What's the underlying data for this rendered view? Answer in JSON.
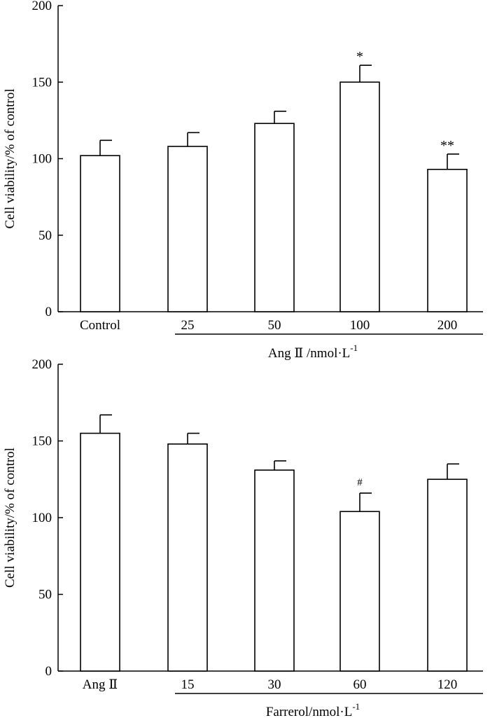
{
  "chart_data": [
    {
      "type": "bar",
      "ylabel": "Cell viability/% of control",
      "ylim": [
        0,
        200
      ],
      "yticks": [
        "0",
        "50",
        "100",
        "150",
        "200"
      ],
      "categories": [
        "Control",
        "25",
        "50",
        "100",
        "200"
      ],
      "values": [
        102,
        108,
        123,
        150,
        93
      ],
      "errors": [
        10,
        9,
        8,
        11,
        10
      ],
      "annotations": [
        "",
        "",
        "",
        "*",
        "**"
      ],
      "group_label": "Ang Ⅱ /nmol·L",
      "group_label_superscript": "-1",
      "grouped_categories": [
        "25",
        "50",
        "100",
        "200"
      ]
    },
    {
      "type": "bar",
      "ylabel": "Cell viability/% of control",
      "ylim": [
        0,
        200
      ],
      "yticks": [
        "0",
        "50",
        "100",
        "150",
        "200"
      ],
      "categories": [
        "Ang Ⅱ",
        "15",
        "30",
        "60",
        "120"
      ],
      "values": [
        155,
        148,
        131,
        104,
        125
      ],
      "errors": [
        12,
        7,
        6,
        12,
        10
      ],
      "annotations": [
        "",
        "",
        "",
        "#",
        ""
      ],
      "group_label": "Farrerol/nmol·L",
      "group_label_superscript": "-1",
      "grouped_categories": [
        "15",
        "30",
        "60",
        "120"
      ]
    }
  ]
}
